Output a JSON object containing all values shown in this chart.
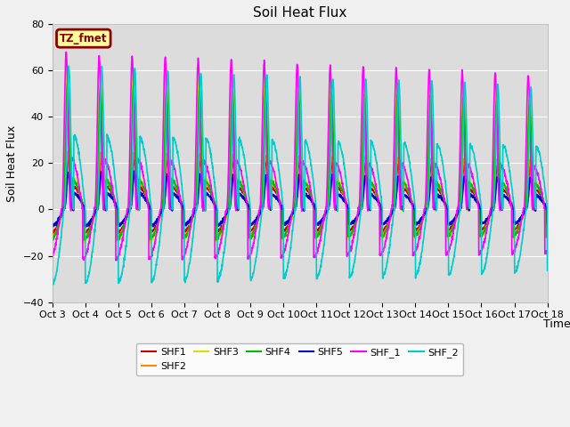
{
  "title": "Soil Heat Flux",
  "ylabel": "Soil Heat Flux",
  "xlabel": "Time",
  "ylim": [
    -40,
    80
  ],
  "yticks": [
    -40,
    -20,
    0,
    20,
    40,
    60,
    80
  ],
  "plot_bg": "#dcdcdc",
  "fig_bg": "#f0f0f0",
  "annotation_text": "TZ_fmet",
  "annotation_bg": "#ffff99",
  "annotation_border": "#8b0000",
  "series_order": [
    "SHF1",
    "SHF2",
    "SHF3",
    "SHF4",
    "SHF5",
    "SHF_1",
    "SHF_2"
  ],
  "series": {
    "SHF1": {
      "color": "#cc0000",
      "lw": 1.2
    },
    "SHF2": {
      "color": "#ff8800",
      "lw": 1.2
    },
    "SHF3": {
      "color": "#dddd00",
      "lw": 1.2
    },
    "SHF4": {
      "color": "#00bb00",
      "lw": 1.2
    },
    "SHF5": {
      "color": "#0000cc",
      "lw": 1.5
    },
    "SHF_1": {
      "color": "#ff00ff",
      "lw": 1.2
    },
    "SHF_2": {
      "color": "#00cccc",
      "lw": 1.2
    }
  },
  "start_day": 3,
  "end_day": 18,
  "n_days": 15,
  "points_per_day": 144,
  "tick_days": [
    3,
    4,
    5,
    6,
    7,
    8,
    9,
    10,
    11,
    12,
    13,
    14,
    15,
    16,
    17,
    18
  ]
}
